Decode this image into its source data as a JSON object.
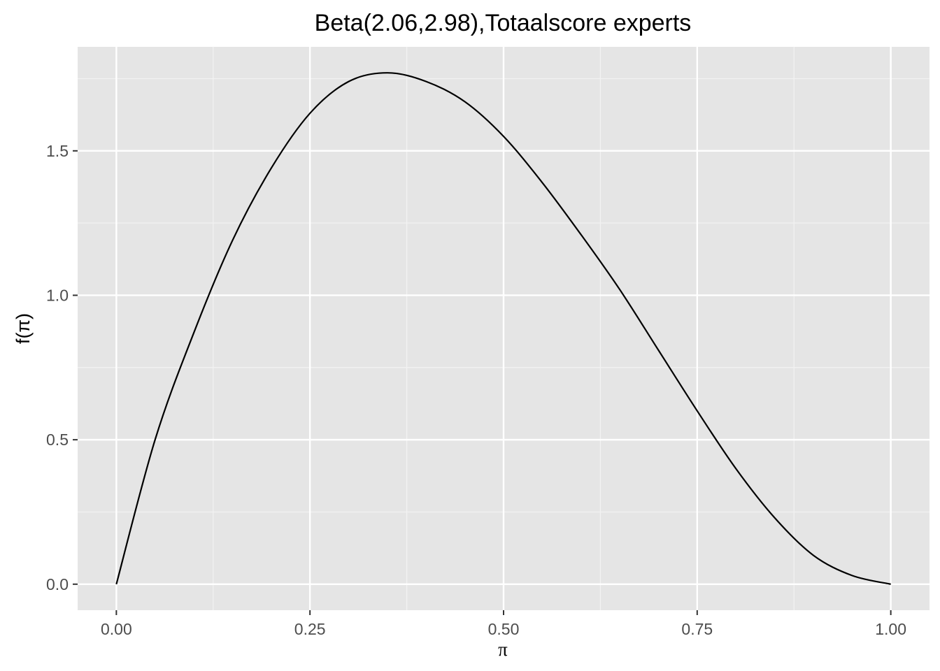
{
  "chart_data": {
    "type": "line",
    "title": "Beta(2.06,2.98),Totaalscore experts",
    "xlabel": "π",
    "ylabel": "f(π)",
    "distribution": {
      "family": "Beta",
      "alpha": 2.06,
      "beta": 2.98
    },
    "xlim": [
      -0.05,
      1.05
    ],
    "ylim": [
      -0.09,
      1.86
    ],
    "x_ticks": [
      0.0,
      0.25,
      0.5,
      0.75,
      1.0
    ],
    "x_tick_labels": [
      "0.00",
      "0.25",
      "0.50",
      "0.75",
      "1.00"
    ],
    "y_ticks": [
      0.0,
      0.5,
      1.0,
      1.5
    ],
    "y_tick_labels": [
      "0.0",
      "0.5",
      "1.0",
      "1.5"
    ],
    "x": [
      0.0,
      0.05,
      0.1,
      0.15,
      0.2,
      0.25,
      0.3,
      0.35,
      0.4,
      0.45,
      0.5,
      0.55,
      0.6,
      0.65,
      0.7,
      0.75,
      0.8,
      0.85,
      0.9,
      0.95,
      1.0
    ],
    "y": [
      0.0,
      0.5,
      0.87,
      1.19,
      1.44,
      1.63,
      1.74,
      1.77,
      1.74,
      1.67,
      1.55,
      1.39,
      1.21,
      1.02,
      0.81,
      0.6,
      0.4,
      0.23,
      0.1,
      0.03,
      0.0
    ],
    "grid": true,
    "legend": "none",
    "colors": {
      "panel_background": "#e5e5e5",
      "grid_major": "#ffffff",
      "grid_minor": "#f2f2f2",
      "line": "#000000",
      "tick_mark": "#333333"
    }
  }
}
